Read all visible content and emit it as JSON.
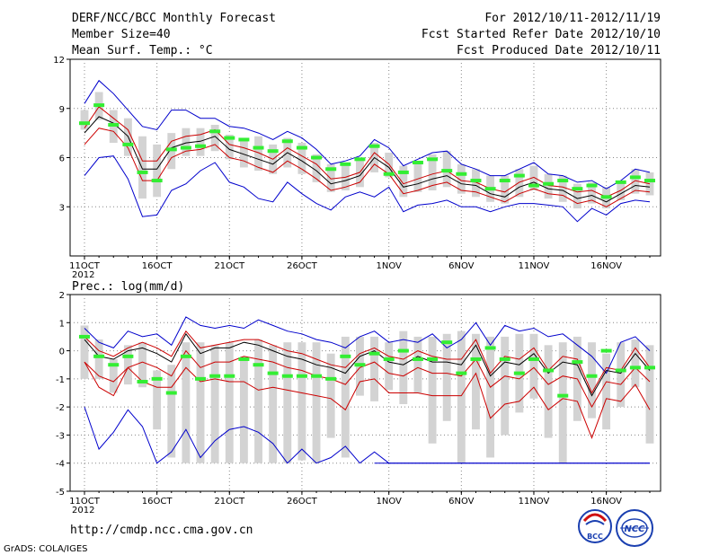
{
  "header": {
    "title": "DERF/NCC/BCC Monthly Forecast",
    "member": "Member Size=40",
    "variable": "Mean Surf. Temp.: °C",
    "period": "For 2012/10/11-2012/11/19",
    "refer": "Fcst Started Refer Date 2012/10/10",
    "produced": "Fcst Produced Date 2012/10/11"
  },
  "footer": {
    "url": "http://cmdp.ncc.cma.gov.cn",
    "credit": "GrADS: COLA/IGES",
    "logo_left": "BCC",
    "logo_right": "NCC"
  },
  "colors": {
    "envelope": "#0000cc",
    "spread": "#cc0000",
    "mean": "#000000",
    "bars": "#d3d3d3",
    "obs": "#33ee33",
    "grid": "#888888"
  },
  "chart_data": [
    {
      "type": "line",
      "title": "Mean Surf. Temp.: °C",
      "x_start": "2012-10-11",
      "n_days": 40,
      "xtick_labels": [
        "11OCT",
        "16OCT",
        "21OCT",
        "26OCT",
        "1NOV",
        "6NOV",
        "11NOV",
        "16NOV"
      ],
      "xtick_days": [
        0,
        5,
        10,
        15,
        21,
        26,
        31,
        36
      ],
      "year_label": "2012",
      "ylim": [
        0,
        12
      ],
      "yticks": [
        3,
        6,
        9,
        12
      ],
      "series": [
        {
          "name": "max",
          "role": "envelope",
          "values": [
            4.9,
            6,
            6.1,
            4.7,
            2.4,
            2.5,
            4,
            4.4,
            5.2,
            5.7,
            4.5,
            4.2,
            3.5,
            3.3,
            4.5,
            3.8,
            3.2,
            2.8,
            3.6,
            3.9,
            3.6,
            4.2,
            2.7,
            3.1,
            3.2,
            3.4,
            3,
            3,
            2.7,
            3,
            3.2,
            3.2,
            3.1,
            3,
            2.1,
            2.9,
            2.5,
            3.2,
            3.4,
            3.3
          ]
        },
        {
          "name": "max_top",
          "role": "envelope",
          "values": [
            9.3,
            10.7,
            9.9,
            8.9,
            7.9,
            7.7,
            8.9,
            8.9,
            8.4,
            8.4,
            7.9,
            7.8,
            7.5,
            7.1,
            7.6,
            7.2,
            6.5,
            5.6,
            5.8,
            6.1,
            7.1,
            6.6,
            5.5,
            5.9,
            6.3,
            6.4,
            5.6,
            5.3,
            4.9,
            4.9,
            5.3,
            5.7,
            5,
            4.9,
            4.5,
            4.6,
            4.1,
            4.6,
            5.3,
            5.1
          ]
        },
        {
          "name": "spread_upper",
          "role": "spread",
          "values": [
            7.8,
            9.1,
            8.4,
            7.7,
            5.8,
            5.8,
            7,
            7.3,
            7.4,
            7.7,
            6.8,
            6.6,
            6.3,
            5.9,
            6.6,
            6.1,
            5.6,
            4.7,
            4.8,
            5.1,
            6.3,
            5.6,
            4.4,
            4.7,
            5,
            5.2,
            4.6,
            4.5,
            4.1,
            3.9,
            4.5,
            4.8,
            4.3,
            4.2,
            3.9,
            4,
            3.6,
            4,
            4.6,
            4.4
          ]
        },
        {
          "name": "mean",
          "role": "mean",
          "values": [
            7.5,
            8.5,
            8.1,
            7.3,
            5.3,
            5.3,
            6.6,
            6.9,
            7,
            7.3,
            6.5,
            6.2,
            5.9,
            5.6,
            6.3,
            5.8,
            5.2,
            4.4,
            4.6,
            4.9,
            6,
            5.4,
            4.2,
            4.4,
            4.7,
            4.9,
            4.4,
            4.3,
            3.8,
            3.6,
            4.2,
            4.5,
            4.1,
            4,
            3.5,
            3.7,
            3.3,
            3.8,
            4.3,
            4.2
          ]
        },
        {
          "name": "spread_lower",
          "role": "spread",
          "values": [
            6.8,
            7.8,
            7.6,
            6.6,
            4.6,
            4.6,
            6,
            6.4,
            6.5,
            6.8,
            6,
            5.8,
            5.4,
            5.1,
            5.8,
            5.3,
            4.7,
            4,
            4.2,
            4.5,
            5.6,
            5,
            3.8,
            4,
            4.3,
            4.5,
            4,
            3.9,
            3.6,
            3.3,
            3.8,
            4.1,
            3.8,
            3.7,
            3.2,
            3.4,
            3,
            3.5,
            4,
            3.9
          ]
        }
      ],
      "box_low": [
        7.7,
        8.3,
        6.9,
        6.1,
        3.5,
        3.6,
        5.3,
        6.1,
        6.1,
        6.4,
        5.9,
        5.4,
        5.2,
        5,
        5.4,
        5,
        4.5,
        3.9,
        4,
        4.2,
        5.1,
        4.8,
        3.6,
        3.9,
        4,
        4.2,
        3.8,
        3.6,
        3.3,
        3.2,
        3.6,
        4,
        3.5,
        3.3,
        2.9,
        3.2,
        2.9,
        3.4,
        3.8,
        3.7
      ],
      "box_high": [
        8.9,
        10,
        8.9,
        8.4,
        7.3,
        6.8,
        7.5,
        7.8,
        7.8,
        8,
        7.4,
        7.1,
        7.3,
        6.8,
        7.2,
        6.9,
        6.2,
        5.6,
        5.6,
        5.9,
        6.9,
        6.3,
        5.5,
        5.8,
        6.2,
        6.4,
        5.6,
        5.3,
        4.9,
        4.9,
        5.3,
        5.5,
        5,
        4.9,
        4.4,
        4.5,
        4.2,
        4.6,
        5.3,
        5.1
      ],
      "observed": [
        8.1,
        9.2,
        8,
        6.8,
        5.1,
        4.6,
        6.5,
        6.6,
        6.7,
        7.6,
        7.2,
        7.1,
        6.6,
        6.4,
        7,
        6.6,
        6,
        5.3,
        5.6,
        5.9,
        6.7,
        5,
        5.1,
        5.7,
        5.9,
        5.2,
        5,
        4.6,
        4.1,
        4.6,
        4.9,
        4.3,
        4.4,
        4.6,
        4.1,
        4.3,
        3.6,
        4.5,
        4.8,
        4.6
      ]
    },
    {
      "type": "line",
      "title": "Prec.: log(mm/d)",
      "x_start": "2012-10-11",
      "n_days": 40,
      "xtick_labels": [
        "11OCT",
        "16OCT",
        "21OCT",
        "26OCT",
        "1NOV",
        "6NOV",
        "11NOV",
        "16NOV"
      ],
      "xtick_days": [
        0,
        5,
        10,
        15,
        21,
        26,
        31,
        36
      ],
      "year_label": "2012",
      "ylim": [
        -5,
        2
      ],
      "yticks": [
        -5,
        -4,
        -3,
        -2,
        -1,
        0,
        1,
        2
      ],
      "series": [
        {
          "name": "min",
          "role": "envelope",
          "values": [
            -2,
            -3.5,
            -2.9,
            -2.1,
            -2.7,
            -4,
            -3.6,
            -2.8,
            -3.8,
            -3.2,
            -2.8,
            -2.7,
            -2.9,
            -3.3,
            -4,
            -3.5,
            -4,
            -3.8,
            -3.4,
            -4,
            -3.6,
            -4,
            -4,
            -4,
            -4,
            -4,
            -4,
            -4,
            -4,
            -4,
            -4,
            -4,
            -4,
            -4,
            -4,
            -4,
            -4,
            -4,
            -4,
            -4
          ]
        },
        {
          "name": "max",
          "role": "envelope",
          "values": [
            0.8,
            0.3,
            0.1,
            0.7,
            0.5,
            0.6,
            0.2,
            1.2,
            0.9,
            0.8,
            0.9,
            0.8,
            1.1,
            0.9,
            0.7,
            0.6,
            0.4,
            0.3,
            0.1,
            0.5,
            0.7,
            0.3,
            0.4,
            0.3,
            0.6,
            0.1,
            0.4,
            1,
            0.2,
            0.9,
            0.7,
            0.8,
            0.5,
            0.6,
            0.2,
            -0.2,
            -0.8,
            0.3,
            0.5,
            0
          ]
        },
        {
          "name": "spread_upper",
          "role": "spread",
          "values": [
            0.5,
            0,
            -0.2,
            0.1,
            0.3,
            0.1,
            -0.2,
            0.7,
            0.1,
            0.2,
            0.3,
            0.4,
            0.4,
            0.2,
            0,
            -0.1,
            -0.3,
            -0.5,
            -0.6,
            -0.1,
            0.1,
            -0.2,
            -0.3,
            0,
            -0.2,
            -0.3,
            -0.3,
            0.4,
            -0.8,
            -0.2,
            -0.3,
            0.1,
            -0.7,
            -0.2,
            -0.3,
            -1.5,
            -0.6,
            -0.7,
            0.1,
            -0.6
          ]
        },
        {
          "name": "mean",
          "role": "mean",
          "values": [
            0.4,
            -0.2,
            -0.3,
            0,
            0.1,
            -0.1,
            -0.4,
            0.6,
            -0.1,
            0.1,
            0.1,
            0.3,
            0.2,
            0,
            -0.2,
            -0.3,
            -0.5,
            -0.6,
            -0.8,
            -0.2,
            0,
            -0.4,
            -0.5,
            -0.2,
            -0.4,
            -0.4,
            -0.5,
            0.2,
            -0.9,
            -0.4,
            -0.5,
            -0.1,
            -0.8,
            -0.4,
            -0.5,
            -1.6,
            -0.7,
            -0.8,
            -0.1,
            -0.7
          ]
        },
        {
          "name": "spread_lower",
          "role": "spread",
          "values": [
            -0.4,
            -0.9,
            -1.1,
            -0.6,
            -0.4,
            -0.6,
            -0.9,
            0,
            -0.6,
            -0.4,
            -0.4,
            -0.2,
            -0.3,
            -0.4,
            -0.6,
            -0.7,
            -0.9,
            -1,
            -1.2,
            -0.6,
            -0.4,
            -0.8,
            -0.9,
            -0.6,
            -0.8,
            -0.8,
            -0.9,
            -0.3,
            -1.3,
            -0.9,
            -1,
            -0.6,
            -1.2,
            -0.9,
            -1,
            -2,
            -1.1,
            -1.2,
            -0.6,
            -1.1
          ]
        },
        {
          "name": "lower_band",
          "role": "spread",
          "values": [
            -0.4,
            -1.3,
            -1.6,
            -0.6,
            -1.1,
            -1.3,
            -1.3,
            -0.6,
            -1.1,
            -1,
            -1.1,
            -1.1,
            -1.4,
            -1.3,
            -1.4,
            -1.5,
            -1.6,
            -1.7,
            -2.1,
            -1.1,
            -1,
            -1.5,
            -1.5,
            -1.5,
            -1.6,
            -1.6,
            -1.6,
            -0.8,
            -2.4,
            -1.9,
            -1.8,
            -1.3,
            -2.1,
            -1.7,
            -1.8,
            -3.1,
            -1.7,
            -1.8,
            -1.2,
            -2.1
          ]
        },
        {
          "name": "flat_floor",
          "role": "envelope",
          "values": [
            null,
            null,
            null,
            null,
            null,
            null,
            null,
            null,
            null,
            null,
            null,
            null,
            null,
            null,
            null,
            null,
            null,
            null,
            null,
            null,
            -4,
            -4,
            -4,
            -4,
            -4,
            -4,
            -4,
            -4,
            -4,
            -4,
            -4,
            -4,
            -4,
            -4,
            -4,
            -4,
            -4,
            -4,
            -4,
            -4
          ]
        }
      ],
      "box_low": [
        -1,
        -1,
        -1.5,
        -1.2,
        -1.3,
        -2.8,
        -3.8,
        -4,
        -4,
        -4,
        -4,
        -4,
        -4,
        -4,
        -4,
        -3.9,
        -4,
        -3.1,
        -3.8,
        -1.6,
        -1.8,
        -1.4,
        -1.9,
        -1.5,
        -3.3,
        -2.5,
        -4,
        -2.8,
        -3.8,
        -3,
        -2.2,
        -1.7,
        -3.1,
        -4,
        -2.5,
        -2.4,
        -2.8,
        -2,
        -1.3,
        -3.3
      ],
      "box_high": [
        0.9,
        0.4,
        -0.3,
        0.2,
        0.3,
        -0.7,
        -0.5,
        0.3,
        0.3,
        0.2,
        0.3,
        -0.2,
        0.4,
        0.2,
        0.3,
        0.3,
        0.3,
        -0.1,
        0.5,
        0.5,
        0.5,
        0.3,
        0.7,
        0.5,
        0.5,
        0.6,
        0.7,
        0.6,
        0.5,
        0.5,
        0.6,
        0.6,
        0.2,
        0.3,
        0.5,
        0.3,
        -0.1,
        0.3,
        0.4,
        0.2
      ],
      "observed": [
        0.5,
        -0.2,
        -0.5,
        -0.2,
        -1.1,
        -1,
        -1.5,
        -0.2,
        -1,
        -0.9,
        -0.9,
        -0.3,
        -0.5,
        -0.8,
        -0.9,
        -0.9,
        -0.9,
        -1,
        -0.2,
        -0.5,
        -0.1,
        -0.3,
        0,
        -0.3,
        -0.3,
        0.3,
        -0.8,
        -0.3,
        0.1,
        -0.3,
        -0.8,
        -0.3,
        -0.7,
        -1.6,
        -0.4,
        -0.9,
        0,
        -0.7,
        -0.6,
        -0.6
      ]
    }
  ]
}
